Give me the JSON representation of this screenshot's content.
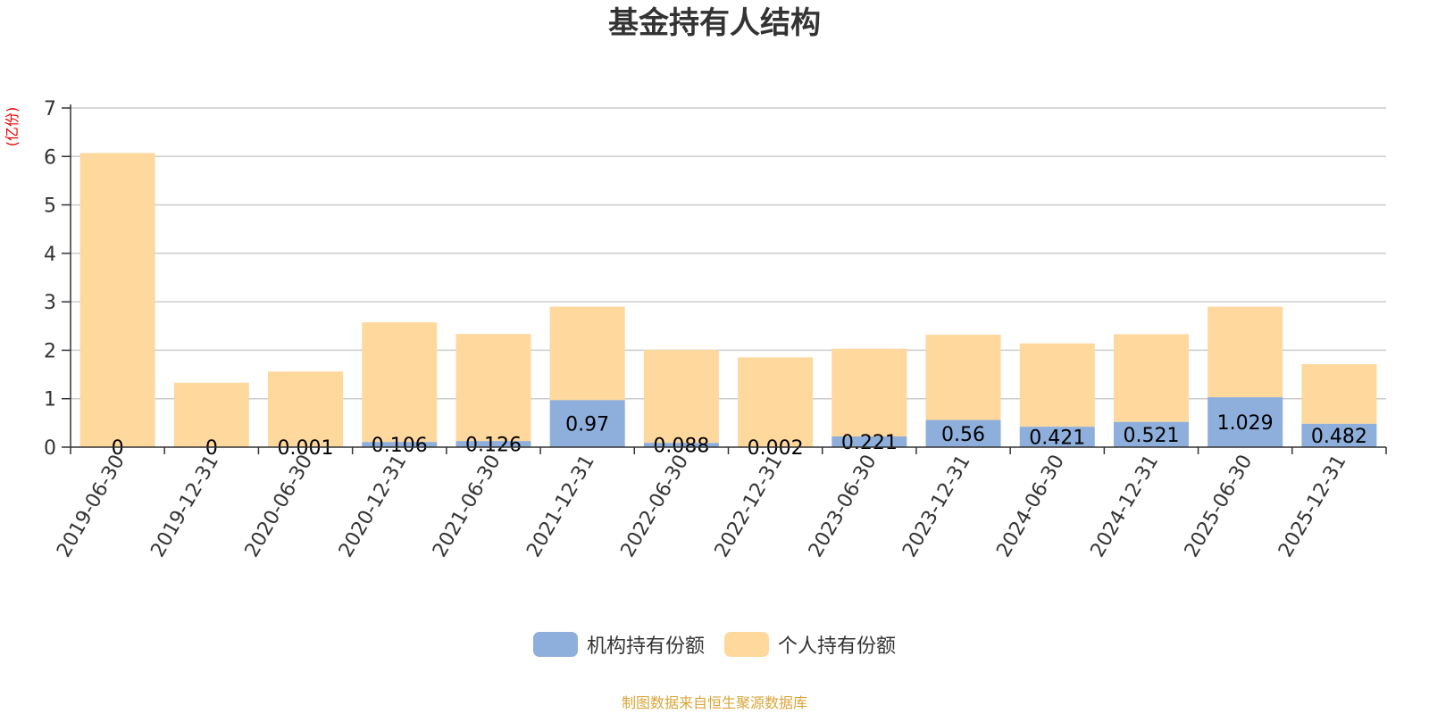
{
  "chart_data": {
    "type": "bar",
    "stacked": true,
    "title": "基金持有人结构",
    "ylabel": "(亿份)",
    "xlabel": "",
    "ylim": [
      0,
      7
    ],
    "yticks": [
      0,
      1,
      2,
      3,
      4,
      5,
      6,
      7
    ],
    "grid": true,
    "legend_position": "bottom",
    "categories": [
      "2019-06-30",
      "2019-12-31",
      "2020-06-30",
      "2020-12-31",
      "2021-06-30",
      "2021-12-31",
      "2022-06-30",
      "2022-12-31",
      "2023-06-30",
      "2023-12-31",
      "2024-06-30",
      "2024-12-31",
      "2025-06-30",
      "2025-12-31"
    ],
    "series": [
      {
        "name": "机构持有份额",
        "color": "#8eaedb",
        "values": [
          0,
          0,
          0.001,
          0.106,
          0.126,
          0.97,
          0.088,
          0.002,
          0.221,
          0.56,
          0.421,
          0.521,
          1.029,
          0.482
        ],
        "labels": [
          "0",
          "0",
          "0.001",
          "0.106",
          "0.126",
          "0.97",
          "0.088",
          "0.002",
          "0.221",
          "0.56",
          "0.421",
          "0.521",
          "1.029",
          "0.482"
        ]
      },
      {
        "name": "个人持有份额",
        "color": "#fed89c",
        "values": [
          6.07,
          1.33,
          1.56,
          2.47,
          2.21,
          1.93,
          1.92,
          1.85,
          1.81,
          1.76,
          1.72,
          1.81,
          1.87,
          1.23
        ]
      }
    ]
  },
  "footer": {
    "source": "制图数据来自恒生聚源数据库"
  },
  "colors": {
    "title": "#333333",
    "axis_unit": "#e60000",
    "source": "#d9a53a",
    "grid": "#cccccc",
    "axis": "#333333"
  }
}
